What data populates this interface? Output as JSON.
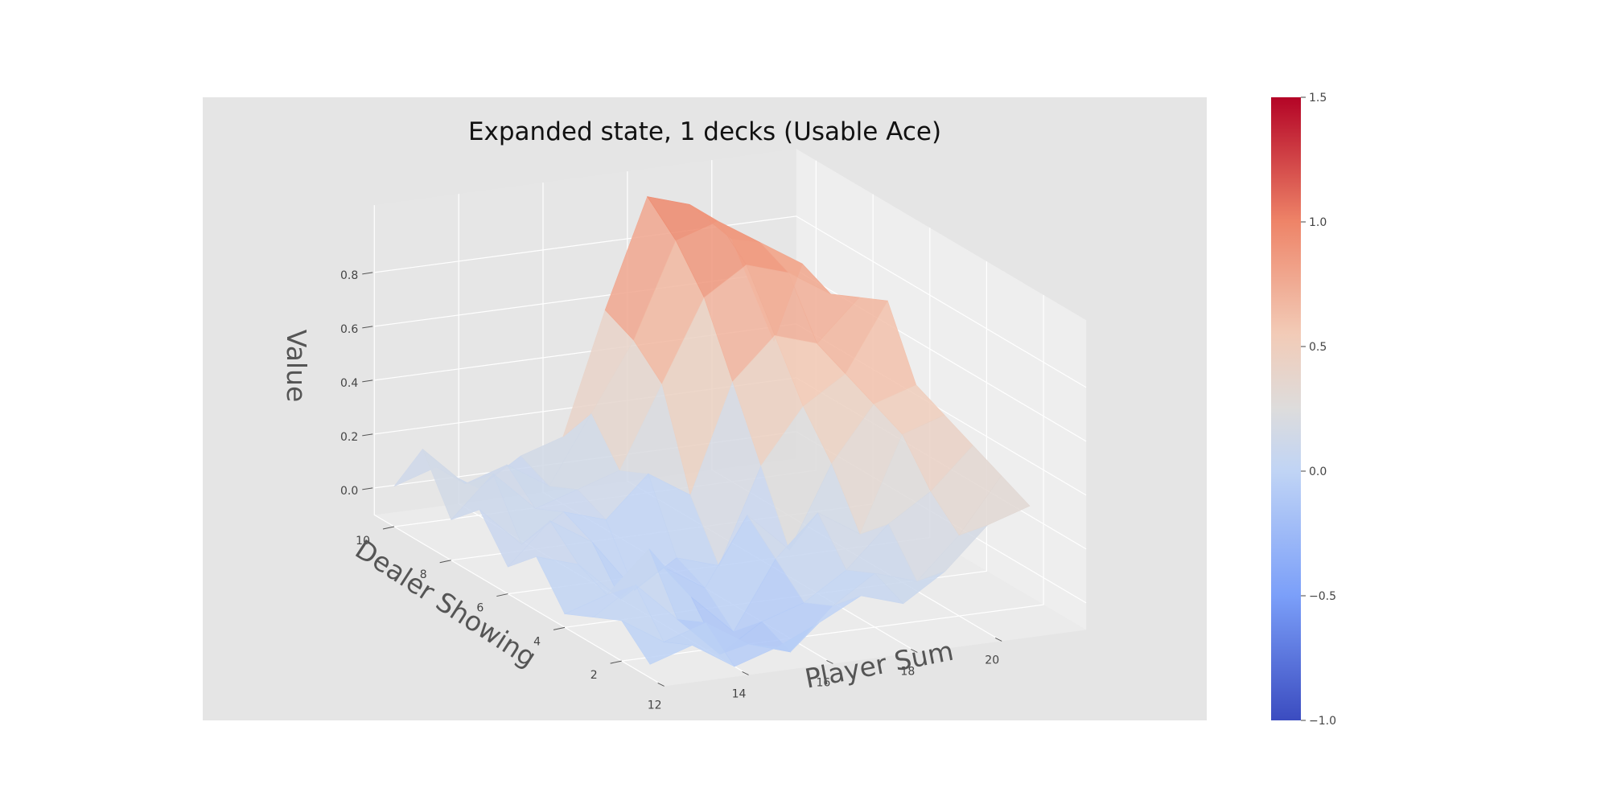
{
  "chart_data": {
    "type": "surface3d",
    "title": "Expanded state, 1 decks (Usable Ace)",
    "xlabel": "Player Sum",
    "ylabel": "Dealer Showing",
    "zlabel": "Value",
    "x": [
      12,
      13,
      14,
      15,
      16,
      17,
      18,
      19,
      20,
      21
    ],
    "y": [
      1,
      2,
      3,
      4,
      5,
      6,
      7,
      8,
      9,
      10
    ],
    "x_ticks": [
      "12",
      "14",
      "16",
      "18",
      "20"
    ],
    "y_ticks": [
      "2",
      "4",
      "6",
      "8",
      "10"
    ],
    "z_ticks": [
      "0.0",
      "0.2",
      "0.4",
      "0.6",
      "0.8"
    ],
    "z": [
      [
        -0.05,
        0.0,
        -0.1,
        -0.05,
        0.02,
        0.1,
        0.05,
        0.15,
        0.3,
        0.35
      ],
      [
        0.05,
        -0.05,
        0.0,
        -0.1,
        -0.15,
        0.0,
        0.1,
        0.05,
        0.2,
        0.4
      ],
      [
        0.0,
        0.1,
        -0.05,
        -0.2,
        -0.1,
        -0.05,
        0.05,
        0.2,
        0.3,
        0.45
      ],
      [
        -0.05,
        0.0,
        0.15,
        -0.05,
        -0.2,
        0.05,
        0.2,
        0.1,
        0.45,
        0.5
      ],
      [
        0.1,
        0.05,
        -0.1,
        0.0,
        -0.1,
        0.15,
        0.0,
        0.3,
        0.5,
        0.55
      ],
      [
        0.0,
        0.15,
        0.05,
        -0.15,
        -0.05,
        -0.1,
        0.25,
        0.45,
        0.55,
        0.8
      ],
      [
        0.15,
        0.0,
        0.1,
        0.05,
        0.2,
        0.1,
        0.5,
        0.65,
        0.6,
        0.75
      ],
      [
        0.05,
        0.2,
        0.05,
        0.1,
        0.15,
        0.45,
        0.75,
        0.85,
        0.8,
        0.7
      ],
      [
        0.25,
        0.1,
        0.15,
        0.05,
        0.3,
        0.55,
        0.9,
        0.95,
        0.85,
        0.75
      ],
      [
        0.05,
        0.1,
        0.0,
        0.1,
        0.15,
        0.6,
        1.0,
        0.95,
        0.8,
        0.4
      ]
    ],
    "zlim": [
      -0.1,
      1.0
    ],
    "colormap": "coolwarm",
    "colorbar": {
      "min": -1.0,
      "max": 1.5,
      "ticks": [
        "−1.0",
        "−0.5",
        "0.0",
        "0.5",
        "1.0",
        "1.5"
      ],
      "tick_values": [
        -1.0,
        -0.5,
        0.0,
        0.5,
        1.0,
        1.5
      ]
    },
    "grid": true,
    "colors": {
      "pane_background": "#e5e5e5",
      "pane_walls": "#ebebeb",
      "grid": "#ffffff",
      "cold": "#3b4cc0",
      "neutral": "#dddcdc",
      "hot": "#b40426"
    }
  }
}
